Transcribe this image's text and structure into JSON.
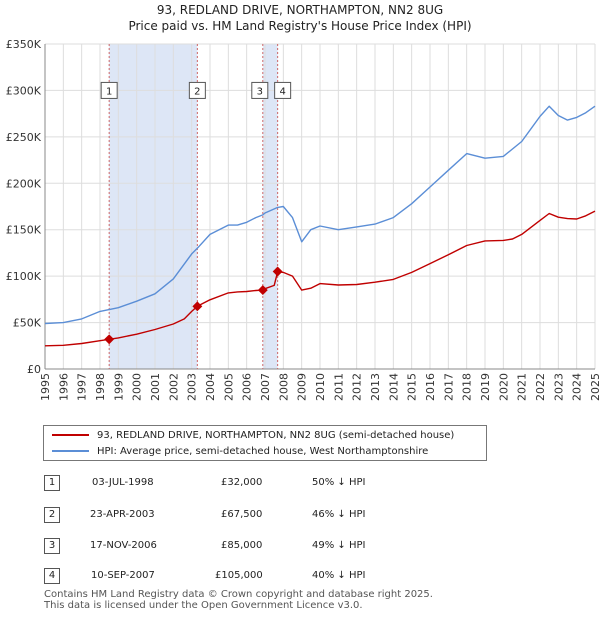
{
  "colors": {
    "property": "#c00000",
    "hpi": "#5b8ed6",
    "shade": "#dde6f6",
    "grid": "#dddddd",
    "vline": "#cc6666"
  },
  "title_line1": "93, REDLAND DRIVE, NORTHAMPTON, NN2 8UG",
  "title_line2": "Price paid vs. HM Land Registry's House Price Index (HPI)",
  "chart_data": {
    "type": "line",
    "x_range": [
      1995,
      2025
    ],
    "ylim": [
      0,
      350000
    ],
    "y_ticks": [
      {
        "value": 0,
        "label": "£0"
      },
      {
        "value": 50000,
        "label": "£50K"
      },
      {
        "value": 100000,
        "label": "£100K"
      },
      {
        "value": 150000,
        "label": "£150K"
      },
      {
        "value": 200000,
        "label": "£200K"
      },
      {
        "value": 250000,
        "label": "£250K"
      },
      {
        "value": 300000,
        "label": "£300K"
      },
      {
        "value": 350000,
        "label": "£350K"
      }
    ],
    "x_ticks": [
      "1995",
      "1996",
      "1997",
      "1998",
      "1999",
      "2000",
      "2001",
      "2002",
      "2003",
      "2004",
      "2005",
      "2006",
      "2007",
      "2008",
      "2009",
      "2010",
      "2011",
      "2012",
      "2013",
      "2014",
      "2015",
      "2016",
      "2017",
      "2018",
      "2019",
      "2020",
      "2021",
      "2022",
      "2023",
      "2024",
      "2025"
    ],
    "shaded_periods": [
      [
        1998.5,
        2003.31
      ],
      [
        2006.88,
        2007.69
      ]
    ],
    "series": [
      {
        "name": "93, REDLAND DRIVE, NORTHAMPTON, NN2 8UG (semi-detached house)",
        "color": "#c00000",
        "points": [
          [
            1995.0,
            25000
          ],
          [
            1996.0,
            25500
          ],
          [
            1997.0,
            27500
          ],
          [
            1998.0,
            30500
          ],
          [
            1998.5,
            32000
          ],
          [
            1999.0,
            33500
          ],
          [
            2000.0,
            37500
          ],
          [
            2001.0,
            42500
          ],
          [
            2002.0,
            48500
          ],
          [
            2002.6,
            54000
          ],
          [
            2003.0,
            62000
          ],
          [
            2003.31,
            67500
          ],
          [
            2004.0,
            74500
          ],
          [
            2005.0,
            82000
          ],
          [
            2005.5,
            83000
          ],
          [
            2006.0,
            83500
          ],
          [
            2006.5,
            84500
          ],
          [
            2006.88,
            85000
          ],
          [
            2007.0,
            86500
          ],
          [
            2007.5,
            90000
          ],
          [
            2007.69,
            105000
          ],
          [
            2008.0,
            104000
          ],
          [
            2008.5,
            100000
          ],
          [
            2009.0,
            85000
          ],
          [
            2009.5,
            87000
          ],
          [
            2010.0,
            92000
          ],
          [
            2011.0,
            90500
          ],
          [
            2012.0,
            91000
          ],
          [
            2013.0,
            93500
          ],
          [
            2014.0,
            96500
          ],
          [
            2015.0,
            104000
          ],
          [
            2016.0,
            113500
          ],
          [
            2017.0,
            123000
          ],
          [
            2018.0,
            133000
          ],
          [
            2019.0,
            138000
          ],
          [
            2020.0,
            138500
          ],
          [
            2020.5,
            140000
          ],
          [
            2021.0,
            145000
          ],
          [
            2022.0,
            160000
          ],
          [
            2022.5,
            167500
          ],
          [
            2023.0,
            163500
          ],
          [
            2023.5,
            162000
          ],
          [
            2024.0,
            161500
          ],
          [
            2024.5,
            165000
          ],
          [
            2025.0,
            170000
          ]
        ]
      },
      {
        "name": "HPI: Average price, semi-detached house, West Northamptonshire",
        "color": "#5b8ed6",
        "points": [
          [
            1995.0,
            49000
          ],
          [
            1996.0,
            50000
          ],
          [
            1997.0,
            54000
          ],
          [
            1998.0,
            62000
          ],
          [
            1998.5,
            64000
          ],
          [
            1999.0,
            66000
          ],
          [
            2000.0,
            73000
          ],
          [
            2001.0,
            81000
          ],
          [
            2002.0,
            97000
          ],
          [
            2003.0,
            124000
          ],
          [
            2003.31,
            130000
          ],
          [
            2004.0,
            145000
          ],
          [
            2005.0,
            155000
          ],
          [
            2005.5,
            155000
          ],
          [
            2006.0,
            158000
          ],
          [
            2006.5,
            163000
          ],
          [
            2006.88,
            166000
          ],
          [
            2007.0,
            168000
          ],
          [
            2007.69,
            174000
          ],
          [
            2008.0,
            175000
          ],
          [
            2008.5,
            163000
          ],
          [
            2009.0,
            137000
          ],
          [
            2009.5,
            150000
          ],
          [
            2010.0,
            154000
          ],
          [
            2011.0,
            150000
          ],
          [
            2012.0,
            153000
          ],
          [
            2013.0,
            156000
          ],
          [
            2014.0,
            163000
          ],
          [
            2015.0,
            178000
          ],
          [
            2016.0,
            196000
          ],
          [
            2017.0,
            214000
          ],
          [
            2018.0,
            232000
          ],
          [
            2019.0,
            227000
          ],
          [
            2020.0,
            229000
          ],
          [
            2021.0,
            245000
          ],
          [
            2022.0,
            272000
          ],
          [
            2022.5,
            283000
          ],
          [
            2023.0,
            273000
          ],
          [
            2023.5,
            268000
          ],
          [
            2024.0,
            271000
          ],
          [
            2024.5,
            276000
          ],
          [
            2025.0,
            283000
          ]
        ]
      }
    ],
    "markers": [
      {
        "label": "1",
        "x": 1998.5,
        "y": 32000
      },
      {
        "label": "2",
        "x": 2003.31,
        "y": 67500
      },
      {
        "label": "3",
        "x": 2006.88,
        "y": 85000
      },
      {
        "label": "4",
        "x": 2007.69,
        "y": 105000
      }
    ],
    "marker_box_y": 300000
  },
  "legend": {
    "property_label": "93, REDLAND DRIVE, NORTHAMPTON, NN2 8UG (semi-detached house)",
    "hpi_label": "HPI: Average price, semi-detached house, West Northamptonshire"
  },
  "transactions": [
    {
      "num": "1",
      "date": "03-JUL-1998",
      "price": "£32,000",
      "hpi": "50% ↓ HPI"
    },
    {
      "num": "2",
      "date": "23-APR-2003",
      "price": "£67,500",
      "hpi": "46% ↓ HPI"
    },
    {
      "num": "3",
      "date": "17-NOV-2006",
      "price": "£85,000",
      "hpi": "49% ↓ HPI"
    },
    {
      "num": "4",
      "date": "10-SEP-2007",
      "price": "£105,000",
      "hpi": "40% ↓ HPI"
    }
  ],
  "footer_line1": "Contains HM Land Registry data © Crown copyright and database right 2025.",
  "footer_line2": "This data is licensed under the Open Government Licence v3.0."
}
